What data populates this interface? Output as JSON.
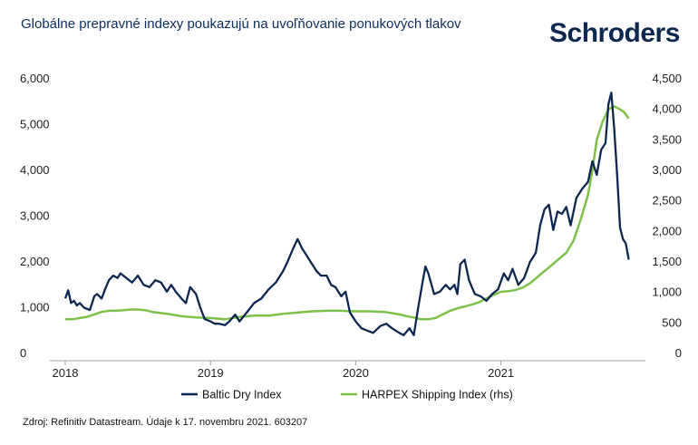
{
  "title": "Globálne prepravné indexy poukazujú na uvoľňovanie ponukových tlakov",
  "brand": "Schroders",
  "source": "Zdroj: Refinitiv Datastream. Údaje k 17. novembru 2021. 603207",
  "colors": {
    "baltic": "#0e2751",
    "harpex": "#7ec14a",
    "text": "#0b2d5e"
  },
  "chart_data": {
    "type": "line",
    "title": "Globálne prepravné indexy poukazujú na uvoľňovanie ponukových tlakov",
    "x_ticks": [
      "2018",
      "2019",
      "2020",
      "2021"
    ],
    "x_tick_values": [
      2018,
      2019,
      2020,
      2021
    ],
    "xlim": [
      2018,
      2021.92
    ],
    "y_left": {
      "ylim": [
        0,
        6000
      ],
      "tick_values": [
        0,
        1000,
        2000,
        3000,
        4000,
        5000,
        6000
      ],
      "tick_labels": [
        "0",
        "1,000",
        "2,000",
        "3,000",
        "4,000",
        "5,000",
        "6,000"
      ]
    },
    "y_right": {
      "ylim": [
        0,
        4500
      ],
      "tick_values": [
        0,
        500,
        1000,
        1500,
        2000,
        2500,
        3000,
        3500,
        4000,
        4500
      ],
      "tick_labels": [
        "0",
        "500",
        "1,000",
        "1,500",
        "2,000",
        "2,500",
        "3,000",
        "3,500",
        "4,000",
        "4,500"
      ]
    },
    "series": [
      {
        "name": "Baltic Dry Index",
        "axis": "left",
        "x": [
          2018.0,
          2018.02,
          2018.04,
          2018.06,
          2018.08,
          2018.1,
          2018.13,
          2018.17,
          2018.2,
          2018.22,
          2018.25,
          2018.28,
          2018.3,
          2018.33,
          2018.36,
          2018.38,
          2018.42,
          2018.46,
          2018.5,
          2018.54,
          2018.58,
          2018.62,
          2018.66,
          2018.7,
          2018.73,
          2018.76,
          2018.8,
          2018.83,
          2018.86,
          2018.9,
          2018.93,
          2018.96,
          2019.0,
          2019.03,
          2019.06,
          2019.1,
          2019.13,
          2019.17,
          2019.2,
          2019.25,
          2019.3,
          2019.35,
          2019.4,
          2019.45,
          2019.5,
          2019.53,
          2019.57,
          2019.6,
          2019.63,
          2019.66,
          2019.7,
          2019.73,
          2019.76,
          2019.8,
          2019.83,
          2019.86,
          2019.9,
          2019.93,
          2019.96,
          2020.0,
          2020.04,
          2020.08,
          2020.12,
          2020.17,
          2020.21,
          2020.25,
          2020.3,
          2020.33,
          2020.37,
          2020.4,
          2020.43,
          2020.46,
          2020.48,
          2020.5,
          2020.54,
          2020.58,
          2020.62,
          2020.65,
          2020.68,
          2020.7,
          2020.72,
          2020.75,
          2020.78,
          2020.82,
          2020.86,
          2020.9,
          2020.94,
          2020.98,
          2021.02,
          2021.05,
          2021.08,
          2021.12,
          2021.16,
          2021.2,
          2021.24,
          2021.27,
          2021.3,
          2021.33,
          2021.36,
          2021.39,
          2021.42,
          2021.45,
          2021.48,
          2021.52,
          2021.56,
          2021.6,
          2021.63,
          2021.66,
          2021.69,
          2021.72,
          2021.74,
          2021.76,
          2021.78,
          2021.8,
          2021.82,
          2021.84,
          2021.86,
          2021.88
        ],
        "values": [
          1200,
          1380,
          1100,
          1150,
          1050,
          1100,
          1000,
          950,
          1250,
          1300,
          1200,
          1450,
          1600,
          1700,
          1650,
          1750,
          1650,
          1550,
          1700,
          1500,
          1450,
          1600,
          1550,
          1350,
          1500,
          1350,
          1200,
          1100,
          1450,
          1300,
          1000,
          750,
          700,
          650,
          650,
          620,
          700,
          850,
          700,
          900,
          1100,
          1200,
          1400,
          1550,
          1800,
          2000,
          2300,
          2500,
          2300,
          2150,
          1950,
          1800,
          1700,
          1700,
          1500,
          1450,
          1250,
          1350,
          900,
          700,
          550,
          500,
          450,
          600,
          650,
          550,
          450,
          400,
          550,
          400,
          1000,
          1550,
          1900,
          1750,
          1300,
          1350,
          1500,
          1400,
          1500,
          1300,
          1950,
          2050,
          1600,
          1300,
          1250,
          1150,
          1300,
          1400,
          1750,
          1600,
          1850,
          1500,
          1650,
          2000,
          2200,
          2800,
          3150,
          3250,
          2700,
          3100,
          3050,
          3200,
          2800,
          3400,
          3600,
          3750,
          4200,
          3900,
          4450,
          4600,
          5450,
          5700,
          4900,
          3900,
          2750,
          2500,
          2400,
          2050
        ]
      },
      {
        "name": "HARPEX Shipping Index (rhs)",
        "axis": "right",
        "x": [
          2018.0,
          2018.05,
          2018.1,
          2018.15,
          2018.2,
          2018.25,
          2018.3,
          2018.35,
          2018.4,
          2018.45,
          2018.5,
          2018.55,
          2018.6,
          2018.7,
          2018.8,
          2018.9,
          2019.0,
          2019.1,
          2019.2,
          2019.3,
          2019.4,
          2019.5,
          2019.6,
          2019.7,
          2019.8,
          2019.9,
          2020.0,
          2020.1,
          2020.2,
          2020.3,
          2020.35,
          2020.4,
          2020.45,
          2020.5,
          2020.55,
          2020.6,
          2020.65,
          2020.7,
          2020.75,
          2020.8,
          2020.85,
          2020.9,
          2020.95,
          2021.0,
          2021.05,
          2021.1,
          2021.15,
          2021.2,
          2021.25,
          2021.3,
          2021.35,
          2021.4,
          2021.45,
          2021.5,
          2021.55,
          2021.6,
          2021.63,
          2021.66,
          2021.7,
          2021.74,
          2021.78,
          2021.82,
          2021.85,
          2021.88
        ],
        "values": [
          560,
          560,
          580,
          600,
          640,
          680,
          700,
          700,
          710,
          720,
          720,
          710,
          680,
          650,
          610,
          590,
          580,
          560,
          600,
          620,
          620,
          650,
          670,
          690,
          700,
          700,
          690,
          690,
          680,
          640,
          610,
          590,
          560,
          560,
          580,
          640,
          700,
          740,
          770,
          800,
          840,
          900,
          960,
          1010,
          1020,
          1040,
          1080,
          1150,
          1250,
          1350,
          1450,
          1550,
          1650,
          1850,
          2200,
          2600,
          3000,
          3500,
          3800,
          4000,
          4050,
          4000,
          3950,
          3850
        ]
      }
    ],
    "legend": [
      "Baltic Dry Index",
      "HARPEX Shipping Index (rhs)"
    ],
    "legend_placement": "bottom-center"
  }
}
